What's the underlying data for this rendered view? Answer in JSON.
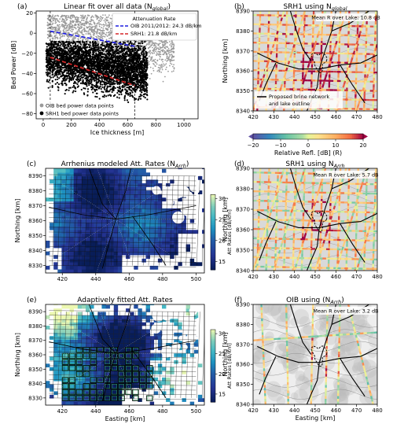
{
  "chart_data": [
    {
      "panel": "(a)",
      "type": "scatter",
      "title": "Linear fit over all data (N",
      "title_sub": "global",
      "title_end": ")",
      "xlabel": "Ice thickness [m]",
      "ylabel": "Bed Power [dB]",
      "xlim": [
        -50,
        1100
      ],
      "ylim": [
        -85,
        22
      ],
      "xticks": [
        "0",
        "200",
        "400",
        "600",
        "800",
        "1000"
      ],
      "yticks": [
        "−80",
        "−60",
        "−40",
        "−20",
        "0",
        "20"
      ],
      "legend_fit_title": "Attenuation Rate",
      "fit_lines": [
        {
          "name": "OIB 2011/2012: 24.3 dB/km",
          "color": "#1f1fe0",
          "x": [
            50,
            650
          ],
          "y": [
            2,
            -13
          ]
        },
        {
          "name": "SRH1: 21.8 dB/km",
          "color": "#d62728",
          "x": [
            50,
            650
          ],
          "y": [
            -24,
            -52
          ]
        }
      ],
      "vlines_x": [
        50,
        650
      ],
      "scatter_legend": [
        "OIB bed power data points",
        "SRH1 bed power data points"
      ]
    },
    {
      "panel": "(b)",
      "type": "heatmap",
      "title": "SRH1 using N",
      "title_sub": "global",
      "annotation": "Mean R over Lake: 10.8 dB",
      "legend": "Proposed brine network and lake outline",
      "xlim": [
        420,
        480
      ],
      "ylim": [
        8340,
        8390
      ],
      "xticks": [
        "420",
        "430",
        "440",
        "450",
        "460",
        "470",
        "480"
      ],
      "yticks": [
        "8340",
        "8350",
        "8360",
        "8370",
        "8380",
        "8390"
      ],
      "ylabel": "Northing [km]",
      "colorbar": {
        "label": "Relative Refl. [dB] (R)",
        "ticks": [
          "−20",
          "−10",
          "0",
          "10",
          "20"
        ],
        "range": [
          -20,
          20
        ]
      }
    },
    {
      "panel": "(c)",
      "type": "heatmap",
      "title": "Arrhenius modeled Att. Rates (N",
      "title_sub": "Arrh",
      "title_end": ")",
      "xlim": [
        410,
        505
      ],
      "ylim": [
        8325,
        8395
      ],
      "xticks": [
        "420",
        "440",
        "460",
        "480",
        "500"
      ],
      "yticks": [
        "8330",
        "8340",
        "8350",
        "8360",
        "8370",
        "8380",
        "8390"
      ],
      "ylabel": "Northing [km]",
      "colorbar": {
        "label": "Att Rates [dB/km]",
        "ticks": [
          "15",
          "20",
          "25",
          "30"
        ],
        "range": [
          13,
          31
        ]
      }
    },
    {
      "panel": "(d)",
      "type": "heatmap",
      "title": "SRH1 using N",
      "title_sub": "Arrh",
      "annotation": "Mean R over Lake: 5.7 dB",
      "xlim": [
        420,
        480
      ],
      "ylim": [
        8340,
        8390
      ],
      "xticks": [
        "420",
        "430",
        "440",
        "450",
        "460",
        "470",
        "480"
      ],
      "yticks": [
        "8340",
        "8350",
        "8360",
        "8370",
        "8380",
        "8390"
      ],
      "ylabel": "Northing [km]"
    },
    {
      "panel": "(e)",
      "type": "heatmap",
      "title": "Adaptively fitted Att. Rates",
      "xlim": [
        410,
        505
      ],
      "ylim": [
        8325,
        8395
      ],
      "xticks": [
        "420",
        "440",
        "460",
        "480",
        "500"
      ],
      "yticks": [
        "8330",
        "8340",
        "8350",
        "8360",
        "8370",
        "8380",
        "8390"
      ],
      "xlabel": "Easting [km]",
      "ylabel": "Northing [km]",
      "colorbar": {
        "label": "Att Rates [dB/km]",
        "ticks": [
          "15",
          "20",
          "25",
          "30"
        ],
        "range": [
          13,
          31
        ]
      }
    },
    {
      "panel": "(f)",
      "type": "heatmap",
      "title": "OIB using (N",
      "title_sub": "Arrh",
      "title_end": ")",
      "annotation": "Mean R over Lake: 3.2 dB",
      "xlim": [
        420,
        480
      ],
      "ylim": [
        8340,
        8390
      ],
      "xticks": [
        "420",
        "430",
        "440",
        "450",
        "460",
        "470",
        "480"
      ],
      "yticks": [
        "8340",
        "8350",
        "8360",
        "8370",
        "8380",
        "8390"
      ],
      "xlabel": "Easting [km]",
      "ylabel": "Northing [km]"
    }
  ]
}
